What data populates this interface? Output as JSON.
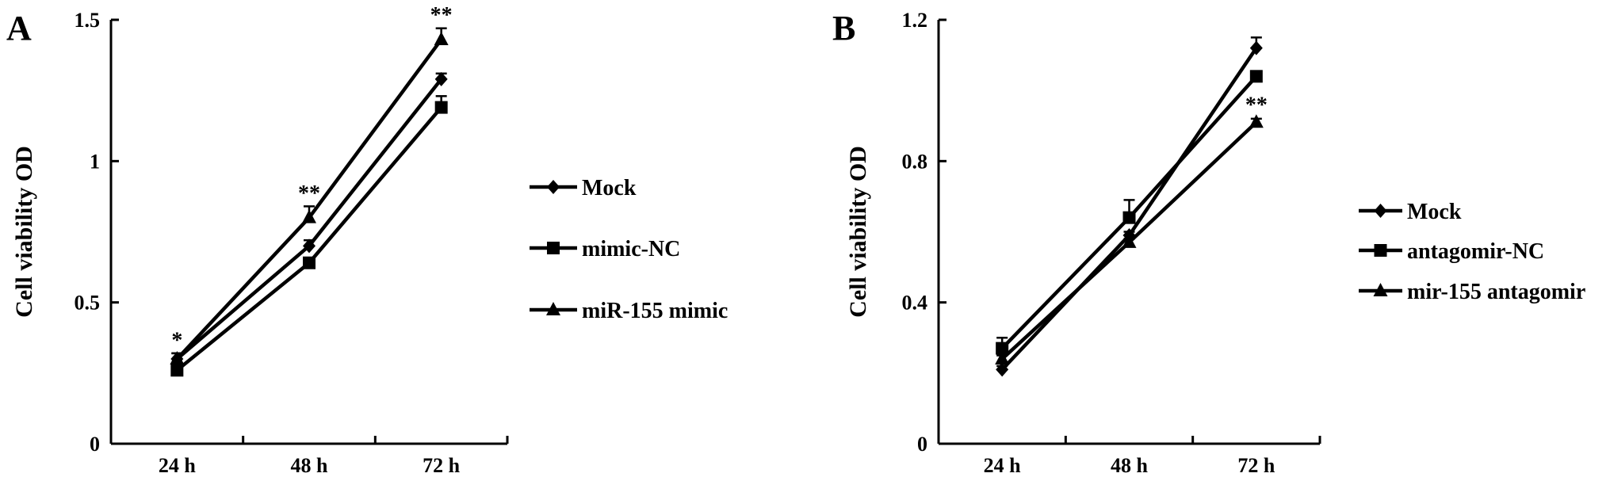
{
  "chart_data": [
    {
      "panel": "A",
      "type": "line",
      "ylabel": "Cell viability OD",
      "xlabel": "",
      "categories": [
        "24 h",
        "48 h",
        "72 h"
      ],
      "ylim": [
        0,
        1.5
      ],
      "yticks": [
        0,
        0.5,
        1,
        1.5
      ],
      "ytick_labels": [
        "0",
        "0.5",
        "1",
        "1.5"
      ],
      "legend_position": "right",
      "series": [
        {
          "name": "Mock",
          "marker": "diamond",
          "values": [
            0.3,
            0.7,
            1.29
          ],
          "errors": [
            0.02,
            0.02,
            0.02
          ]
        },
        {
          "name": "mimic-NC",
          "marker": "square",
          "values": [
            0.26,
            0.64,
            1.19
          ],
          "errors": [
            0.01,
            0.01,
            0.04
          ]
        },
        {
          "name": "miR-155 mimic",
          "marker": "triangle",
          "values": [
            0.3,
            0.8,
            1.43
          ],
          "errors": [
            0.02,
            0.04,
            0.04
          ]
        }
      ],
      "annotations": [
        {
          "category": "24 h",
          "text": "*",
          "anchor_value": 0.33
        },
        {
          "category": "48 h",
          "text": "**",
          "anchor_value": 0.85
        },
        {
          "category": "72 h",
          "text": "**",
          "anchor_value": 1.48
        }
      ]
    },
    {
      "panel": "B",
      "type": "line",
      "ylabel": "Cell viability OD",
      "xlabel": "",
      "categories": [
        "24 h",
        "48 h",
        "72 h"
      ],
      "ylim": [
        0,
        1.2
      ],
      "yticks": [
        0,
        0.4,
        0.8,
        1.2
      ],
      "ytick_labels": [
        "0",
        "0.4",
        "0.8",
        "1.2"
      ],
      "legend_position": "right",
      "series": [
        {
          "name": "Mock",
          "marker": "diamond",
          "values": [
            0.21,
            0.59,
            1.12
          ],
          "errors": [
            0.01,
            0.01,
            0.03
          ]
        },
        {
          "name": "antagomir-NC",
          "marker": "square",
          "values": [
            0.27,
            0.64,
            1.04
          ],
          "errors": [
            0.03,
            0.05,
            0.01
          ]
        },
        {
          "name": "mir-155 antagomir",
          "marker": "triangle",
          "values": [
            0.24,
            0.57,
            0.91
          ],
          "errors": [
            0.01,
            0.01,
            0.01
          ]
        }
      ],
      "annotations": [
        {
          "category": "72 h",
          "text": "**",
          "anchor_value": 0.93
        }
      ]
    }
  ]
}
